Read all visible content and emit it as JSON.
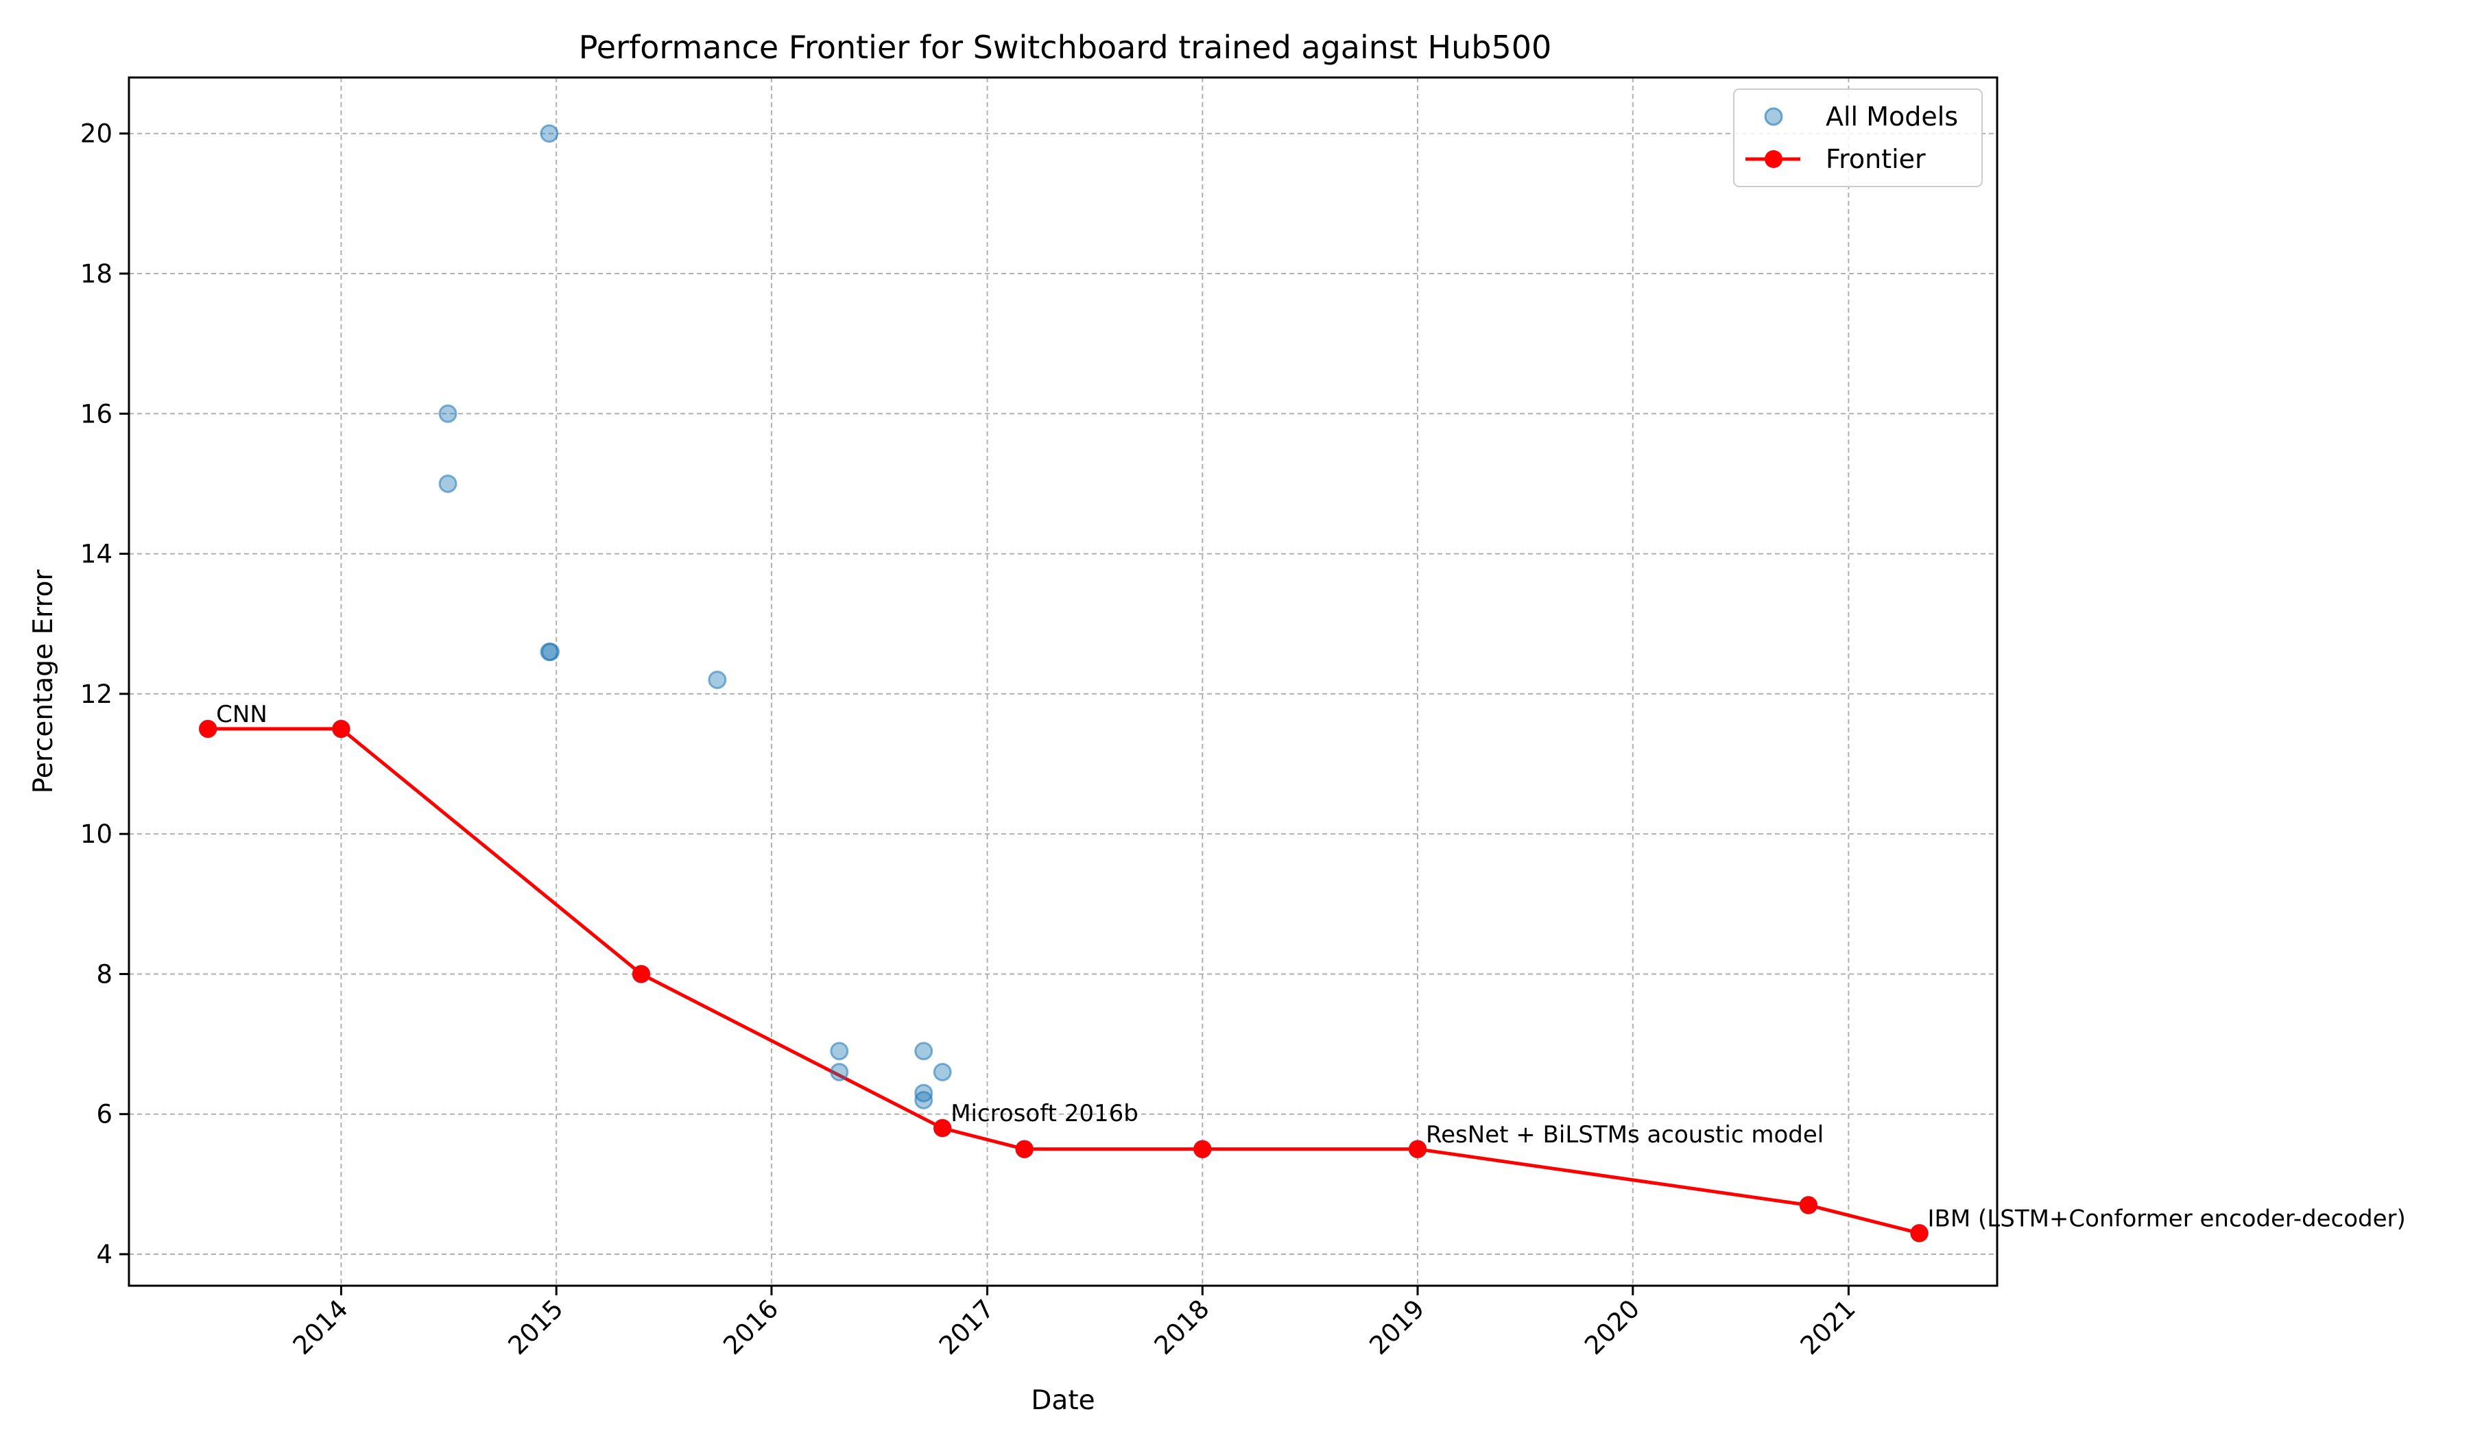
{
  "chart_data": {
    "type": "scatter",
    "title": "Performance Frontier for Switchboard trained against Hub500",
    "xlabel": "Date",
    "ylabel": "Percentage Error",
    "xlim": [
      "2013-01-06",
      "2021-09-10"
    ],
    "ylim": [
      3.55,
      20.8
    ],
    "x_ticks": [
      "2014",
      "2015",
      "2016",
      "2017",
      "2018",
      "2019",
      "2020",
      "2021"
    ],
    "y_ticks": [
      "4",
      "6",
      "8",
      "10",
      "12",
      "14",
      "16",
      "18",
      "20"
    ],
    "grid": true,
    "legend": {
      "placement": "top-right",
      "entries": [
        "All Models",
        "Frontier"
      ]
    },
    "colors": {
      "all_models": "#1f77b4",
      "frontier": "#ff0000"
    },
    "series": [
      {
        "name": "All Models",
        "type": "scatter",
        "points": [
          {
            "x": "2013-05-20",
            "y": 11.5
          },
          {
            "x": "2014-01-01",
            "y": 11.5
          },
          {
            "x": "2014-07-01",
            "y": 16.0
          },
          {
            "x": "2014-07-01",
            "y": 15.0
          },
          {
            "x": "2014-12-20",
            "y": 20.0
          },
          {
            "x": "2014-12-20",
            "y": 12.6
          },
          {
            "x": "2014-12-22",
            "y": 12.6
          },
          {
            "x": "2015-05-25",
            "y": 8.0
          },
          {
            "x": "2015-10-01",
            "y": 12.2
          },
          {
            "x": "2016-04-25",
            "y": 6.9
          },
          {
            "x": "2016-04-25",
            "y": 6.6
          },
          {
            "x": "2016-09-15",
            "y": 6.9
          },
          {
            "x": "2016-09-15",
            "y": 6.3
          },
          {
            "x": "2016-09-15",
            "y": 6.2
          },
          {
            "x": "2016-10-17",
            "y": 6.6
          },
          {
            "x": "2016-10-17",
            "y": 5.8
          },
          {
            "x": "2017-03-05",
            "y": 5.5
          },
          {
            "x": "2018-01-01",
            "y": 5.5
          },
          {
            "x": "2019-01-01",
            "y": 5.5
          },
          {
            "x": "2020-10-25",
            "y": 4.7
          },
          {
            "x": "2021-05-01",
            "y": 4.3
          }
        ]
      },
      {
        "name": "Frontier",
        "type": "line",
        "points": [
          {
            "x": "2013-05-20",
            "y": 11.5
          },
          {
            "x": "2014-01-01",
            "y": 11.5
          },
          {
            "x": "2015-05-25",
            "y": 8.0
          },
          {
            "x": "2016-10-17",
            "y": 5.8
          },
          {
            "x": "2017-03-05",
            "y": 5.5
          },
          {
            "x": "2018-01-01",
            "y": 5.5
          },
          {
            "x": "2019-01-01",
            "y": 5.5
          },
          {
            "x": "2020-10-25",
            "y": 4.7
          },
          {
            "x": "2021-05-01",
            "y": 4.3
          }
        ]
      }
    ],
    "annotations": [
      {
        "text": "CNN",
        "x": "2013-05-20",
        "y": 11.5
      },
      {
        "text": "Microsoft 2016b",
        "x": "2016-10-17",
        "y": 5.8
      },
      {
        "text": "ResNet + BiLSTMs acoustic model",
        "x": "2019-01-01",
        "y": 5.5
      },
      {
        "text": "IBM (LSTM+Conformer encoder-decoder)",
        "x": "2021-05-01",
        "y": 4.3
      }
    ]
  }
}
